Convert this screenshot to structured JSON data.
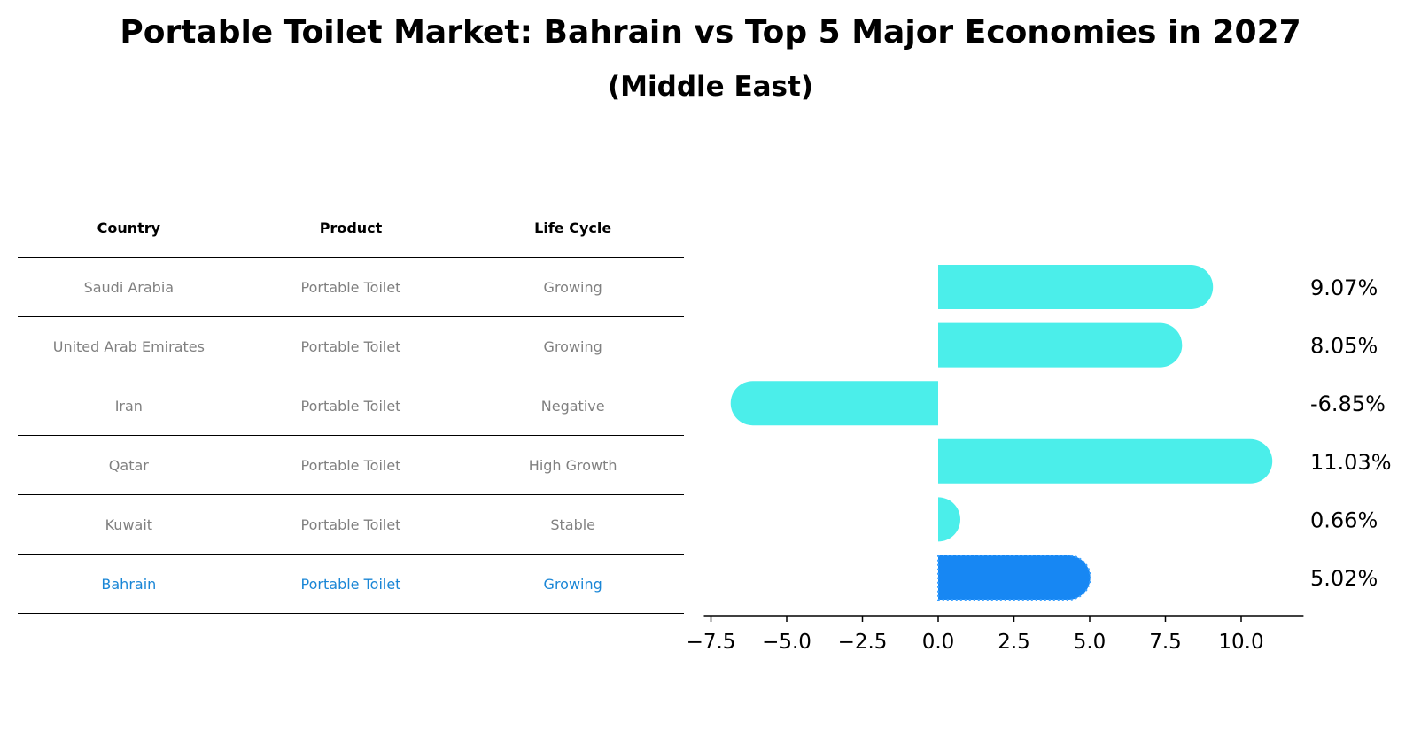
{
  "title": "Portable Toilet Market: Bahrain vs Top 5 Major Economies in 2027",
  "subtitle": "(Middle East)",
  "table": {
    "headers": [
      "Country",
      "Product",
      "Life Cycle"
    ],
    "rows": [
      [
        "Saudi Arabia",
        "Portable Toilet",
        "Growing"
      ],
      [
        "United Arab Emirates",
        "Portable Toilet",
        "Growing"
      ],
      [
        "Iran",
        "Portable Toilet",
        "Negative"
      ],
      [
        "Qatar",
        "Portable Toilet",
        "High Growth"
      ],
      [
        "Kuwait",
        "Portable Toilet",
        "Stable"
      ],
      [
        "Bahrain",
        "Portable Toilet",
        "Growing"
      ]
    ],
    "highlight_row": 5
  },
  "chart_data": {
    "type": "bar",
    "orientation": "horizontal",
    "categories": [
      "Saudi Arabia",
      "United Arab Emirates",
      "Iran",
      "Qatar",
      "Kuwait",
      "Bahrain"
    ],
    "values": [
      9.07,
      8.05,
      -6.85,
      11.03,
      0.66,
      5.02
    ],
    "value_labels": [
      "9.07%",
      "8.05%",
      "-6.85%",
      "11.03%",
      "0.66%",
      "5.02%"
    ],
    "xlim": [
      -7.5,
      12.0
    ],
    "xticks": [
      -7.5,
      -5.0,
      -2.5,
      0.0,
      2.5,
      5.0,
      7.5,
      10.0
    ],
    "xtick_labels": [
      "−7.5",
      "−5.0",
      "−2.5",
      "0.0",
      "2.5",
      "5.0",
      "7.5",
      "10.0"
    ],
    "colors": {
      "default": "#4beeea",
      "highlight": "#1787f3"
    },
    "highlight_index": 5,
    "grid": false,
    "legend": "none"
  }
}
